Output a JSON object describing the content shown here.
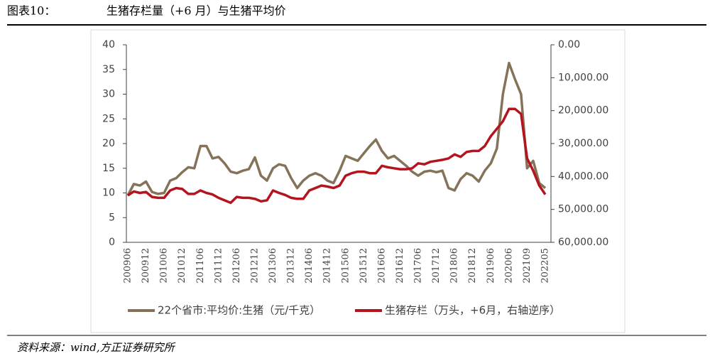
{
  "header": {
    "label": "图表10：",
    "title": "生猪存栏量（+6 月）与生猪平均价"
  },
  "chart_data": {
    "type": "line",
    "categories": [
      "200906",
      null,
      null,
      "200912",
      null,
      null,
      "201006",
      null,
      null,
      "201012",
      null,
      null,
      "201106",
      null,
      null,
      "201112",
      null,
      null,
      "201206",
      null,
      null,
      "201212",
      null,
      null,
      "201306",
      null,
      null,
      "201312",
      null,
      null,
      "201406",
      null,
      null,
      "201412",
      null,
      null,
      "201506",
      null,
      null,
      "201512",
      null,
      null,
      "201606",
      null,
      null,
      "201612",
      null,
      null,
      "201706",
      null,
      null,
      "201712",
      null,
      null,
      "201806",
      null,
      null,
      "201812",
      null,
      null,
      "201906",
      null,
      null,
      "202006",
      null,
      null,
      "202109",
      null,
      null,
      "202205"
    ],
    "series": [
      {
        "name": "22个省市:平均价:生猪（元/千克）",
        "color": "#857359",
        "axis": "y",
        "values": [
          9.5,
          11.8,
          11.5,
          12.3,
          10.2,
          9.8,
          10.0,
          12.5,
          13.0,
          14.2,
          15.2,
          15.0,
          19.5,
          19.5,
          17.0,
          17.3,
          16.0,
          14.3,
          14.0,
          14.5,
          14.8,
          17.2,
          13.5,
          12.5,
          15.0,
          15.8,
          15.5,
          13.0,
          11.0,
          12.5,
          13.5,
          14.0,
          13.5,
          12.5,
          12.0,
          14.5,
          17.5,
          17.0,
          16.5,
          18.0,
          19.5,
          20.8,
          18.5,
          17.0,
          17.5,
          16.5,
          15.5,
          14.3,
          13.5,
          14.3,
          14.5,
          14.2,
          14.5,
          11.0,
          10.5,
          12.8,
          14.0,
          13.5,
          12.3,
          14.5,
          16.0,
          19.0,
          30.0,
          36.3,
          33.0,
          30.0,
          15.0,
          16.5,
          12.0,
          11.0
        ]
      },
      {
        "name": "生猪存栏（万头，+6月，右轴逆序）",
        "color": "#b4141e",
        "axis": "y2",
        "values": [
          45750,
          44550,
          45000,
          44700,
          46200,
          46500,
          46500,
          44250,
          43500,
          43800,
          45300,
          45300,
          44250,
          45000,
          45450,
          46500,
          47250,
          48000,
          46200,
          46500,
          46500,
          46800,
          47550,
          47250,
          44250,
          45000,
          45600,
          46500,
          46800,
          46800,
          44250,
          43500,
          42750,
          43050,
          43500,
          42750,
          39750,
          39000,
          38550,
          38550,
          39000,
          39000,
          36750,
          37200,
          37500,
          37800,
          37800,
          37500,
          36000,
          36300,
          35550,
          35250,
          34950,
          34500,
          33300,
          34050,
          32550,
          32250,
          32250,
          30750,
          27750,
          25500,
          23250,
          19500,
          19500,
          21000,
          34500,
          38250,
          42750,
          45450
        ]
      }
    ],
    "ylim": [
      0,
      40
    ],
    "yticks": [
      0,
      5,
      10,
      15,
      20,
      25,
      30,
      35,
      40
    ],
    "y2lim": [
      60000,
      0
    ],
    "y2ticks": [
      {
        "value": 0,
        "label": "0.00"
      },
      {
        "value": 10000,
        "label": "10,000.00"
      },
      {
        "value": 20000,
        "label": "20,000.00"
      },
      {
        "value": 30000,
        "label": "30,000.00"
      },
      {
        "value": 40000,
        "label": "40,000.00"
      },
      {
        "value": 50000,
        "label": "50,000.00"
      },
      {
        "value": 60000,
        "label": "60,000.00"
      }
    ],
    "legend": "bottom",
    "grid": false
  },
  "source": "资料来源：wind,方正证券研究所"
}
